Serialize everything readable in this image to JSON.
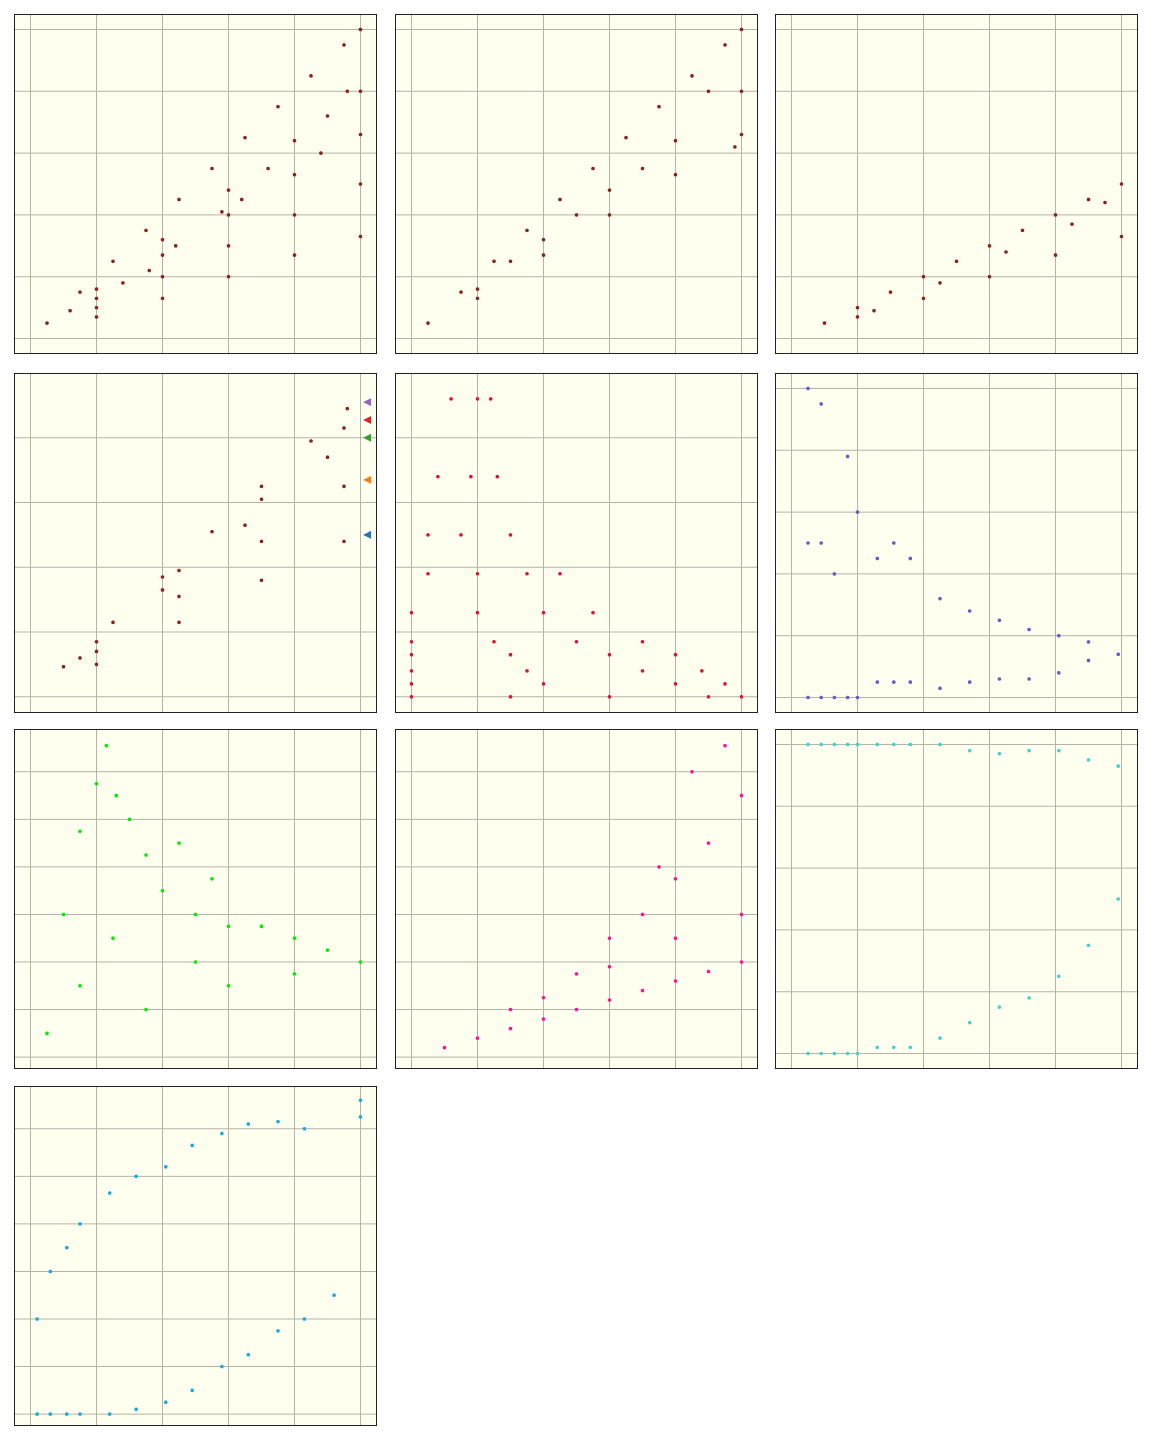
{
  "chart_data": [
    {
      "type": "scatter",
      "grid": true,
      "background": "#fffff0",
      "xlim": [
        -5,
        105
      ],
      "ylim": [
        -5,
        105
      ],
      "xticks": [
        0,
        20,
        40,
        60,
        80,
        100
      ],
      "yticks": [
        0,
        20,
        40,
        60,
        80,
        100
      ],
      "series": [
        {
          "color": "#8b2323",
          "x": [
            5,
            15,
            25,
            35,
            45,
            55,
            65,
            75,
            85,
            95,
            100,
            20,
            40,
            60,
            80,
            100,
            20,
            40,
            60,
            80,
            100,
            20,
            40,
            60,
            80,
            100,
            20,
            40,
            60,
            80,
            100,
            12,
            28,
            44,
            58,
            72,
            88,
            96,
            36,
            64,
            90
          ],
          "y": [
            5,
            15,
            25,
            35,
            45,
            55,
            65,
            75,
            85,
            95,
            100,
            16,
            32,
            48,
            64,
            80,
            13,
            27,
            40,
            53,
            66,
            10,
            20,
            30,
            40,
            50,
            7,
            13,
            20,
            27,
            33,
            9,
            18,
            30,
            41,
            55,
            60,
            80,
            22,
            45,
            72
          ]
        }
      ]
    },
    {
      "type": "scatter",
      "grid": true,
      "background": "#fffff0",
      "xlim": [
        -5,
        105
      ],
      "ylim": [
        -5,
        105
      ],
      "xticks": [
        0,
        20,
        40,
        60,
        80,
        100
      ],
      "yticks": [
        0,
        20,
        40,
        60,
        80,
        100
      ],
      "series": [
        {
          "color": "#8b2323",
          "x": [
            5,
            15,
            25,
            35,
            45,
            55,
            65,
            75,
            85,
            95,
            100,
            20,
            40,
            60,
            80,
            100,
            20,
            40,
            60,
            80,
            100,
            30,
            50,
            70,
            90,
            98
          ],
          "y": [
            5,
            15,
            25,
            35,
            45,
            55,
            65,
            75,
            85,
            95,
            100,
            16,
            32,
            48,
            64,
            80,
            13,
            27,
            40,
            53,
            66,
            25,
            40,
            55,
            80,
            62
          ]
        }
      ]
    },
    {
      "type": "scatter",
      "grid": true,
      "background": "#fffff0",
      "xlim": [
        -5,
        105
      ],
      "ylim": [
        -5,
        105
      ],
      "xticks": [
        0,
        20,
        40,
        60,
        80,
        100
      ],
      "yticks": [
        0,
        20,
        40,
        60,
        80,
        100
      ],
      "series": [
        {
          "color": "#8b2323",
          "x": [
            10,
            20,
            30,
            40,
            50,
            60,
            70,
            80,
            90,
            100,
            20,
            40,
            60,
            80,
            100,
            25,
            45,
            65,
            85,
            95
          ],
          "y": [
            5,
            10,
            15,
            20,
            25,
            30,
            35,
            40,
            45,
            50,
            7,
            13,
            20,
            27,
            33,
            9,
            18,
            28,
            37,
            44
          ]
        }
      ]
    },
    {
      "type": "scatter",
      "grid": true,
      "background": "#fffff0",
      "xlim": [
        -5,
        105
      ],
      "ylim": [
        -5,
        100
      ],
      "xticks": [
        0,
        20,
        40,
        60,
        80,
        100
      ],
      "yticks": [
        0,
        20,
        40,
        60,
        80
      ],
      "series": [
        {
          "color": "#8b2323",
          "x": [
            10,
            25,
            40,
            55,
            70,
            85,
            96,
            20,
            45,
            70,
            95,
            15,
            40,
            65,
            90,
            20,
            45,
            70,
            95,
            20,
            45,
            70,
            95
          ],
          "y": [
            9.3,
            23,
            37,
            51,
            65,
            79,
            89,
            17,
            39,
            61,
            83,
            12,
            33,
            53,
            74,
            14,
            31,
            48,
            65,
            10,
            23,
            36,
            48
          ]
        },
        {
          "marker": "triangle",
          "colors": [
            "#9467bd",
            "#d62728",
            "#2ca02c",
            "#ff7f0e",
            "#1f77b4"
          ],
          "x": [
            102,
            102,
            102,
            102,
            102
          ],
          "y": [
            91,
            85.5,
            80,
            67,
            50
          ]
        }
      ]
    },
    {
      "type": "scatter",
      "grid": true,
      "background": "#fffff0",
      "xlim": [
        -5,
        105
      ],
      "ylim": [
        -5,
        100
      ],
      "xticks": [
        0,
        20,
        40,
        60,
        80,
        100
      ],
      "yticks": [
        0,
        20,
        40,
        60,
        80
      ],
      "series": [
        {
          "color": "#dc143c",
          "x": [
            0,
            30,
            60,
            90,
            100,
            0,
            40,
            80,
            95,
            0,
            35,
            70,
            88,
            0,
            30,
            60,
            80,
            0,
            25,
            50,
            70,
            0,
            20,
            40,
            55,
            5,
            20,
            35,
            45,
            5,
            15,
            30,
            8,
            18,
            26,
            12,
            20,
            24
          ],
          "y": [
            0,
            0,
            0,
            0,
            0,
            4,
            4,
            4,
            4,
            8,
            8,
            8,
            8,
            13,
            13,
            13,
            13,
            17,
            17,
            17,
            17,
            26,
            26,
            26,
            26,
            38,
            38,
            38,
            38,
            50,
            50,
            50,
            68,
            68,
            68,
            92,
            92,
            92
          ]
        }
      ]
    },
    {
      "type": "scatter",
      "grid": true,
      "background": "#fffff0",
      "xlim": [
        -5,
        105
      ],
      "ylim": [
        -5,
        105
      ],
      "xticks": [
        0,
        20,
        40,
        60,
        80,
        100
      ],
      "yticks": [
        0,
        20,
        40,
        60,
        80,
        100
      ],
      "series": [
        {
          "color": "#6a5acd",
          "x": [
            5,
            5,
            5,
            9,
            9,
            9,
            13,
            13,
            17,
            17,
            20,
            20,
            26,
            26,
            31,
            31,
            36,
            36,
            45,
            45,
            54,
            54,
            63,
            63,
            72,
            72,
            81,
            81,
            90,
            90,
            99
          ],
          "y": [
            0,
            50,
            100,
            0,
            50,
            95,
            0,
            40,
            0,
            78,
            0,
            60,
            5,
            45,
            5,
            50,
            5,
            45,
            3,
            32,
            5,
            28,
            6,
            25,
            6,
            22,
            8,
            20,
            12,
            18,
            14
          ]
        }
      ]
    },
    {
      "type": "scatter",
      "grid": true,
      "background": "#fffff0",
      "xlim": [
        -5,
        105
      ],
      "ylim": [
        -5,
        138
      ],
      "xticks": [
        0,
        20,
        40,
        60,
        80,
        100
      ],
      "yticks": [
        0,
        20,
        40,
        60,
        80,
        100,
        120
      ],
      "series": [
        {
          "color": "#00ee00",
          "x": [
            23,
            20,
            26,
            15,
            30,
            10,
            35,
            40,
            50,
            60,
            70,
            80,
            90,
            100,
            45,
            55,
            70,
            50,
            60,
            80,
            25,
            15,
            35,
            5
          ],
          "y": [
            131,
            115,
            110,
            95,
            100,
            60,
            85,
            70,
            60,
            55,
            55,
            50,
            45,
            40,
            90,
            75,
            55,
            40,
            30,
            35,
            50,
            30,
            20,
            10
          ]
        }
      ]
    },
    {
      "type": "scatter",
      "grid": true,
      "background": "#fffff0",
      "xlim": [
        -5,
        105
      ],
      "ylim": [
        -5,
        138
      ],
      "xticks": [
        0,
        20,
        40,
        60,
        80,
        100
      ],
      "yticks": [
        0,
        20,
        40,
        60,
        80,
        100,
        120
      ],
      "series": [
        {
          "color": "#ff1493",
          "x": [
            10,
            20,
            30,
            40,
            50,
            60,
            70,
            80,
            90,
            100,
            50,
            60,
            70,
            80,
            90,
            95,
            100,
            40,
            60,
            80,
            100,
            30,
            85,
            75
          ],
          "y": [
            4,
            8,
            12,
            16,
            20,
            24,
            28,
            32,
            36,
            40,
            35,
            50,
            60,
            75,
            90,
            131,
            110,
            25,
            38,
            50,
            60,
            20,
            120,
            80
          ]
        }
      ]
    },
    {
      "type": "scatter",
      "grid": true,
      "background": "#fffff0",
      "xlim": [
        -5,
        105
      ],
      "ylim": [
        -5,
        105
      ],
      "xticks": [
        0,
        20,
        40,
        60,
        80,
        100
      ],
      "yticks": [
        0,
        20,
        40,
        60,
        80,
        100
      ],
      "series": [
        {
          "color": "#48d1cc",
          "x": [
            5,
            5,
            9,
            9,
            13,
            13,
            17,
            17,
            20,
            20,
            26,
            26,
            31,
            31,
            36,
            36,
            45,
            45,
            54,
            54,
            63,
            63,
            72,
            72,
            81,
            81,
            90,
            90,
            99,
            99
          ],
          "y": [
            0,
            100,
            0,
            100,
            0,
            100,
            0,
            100,
            0,
            100,
            2,
            100,
            2,
            100,
            2,
            100,
            5,
            100,
            10,
            98,
            15,
            97,
            18,
            98,
            25,
            98,
            35,
            95,
            50,
            93
          ]
        }
      ]
    },
    {
      "type": "scatter",
      "grid": true,
      "background": "#fffff0",
      "xlim": [
        -5,
        105
      ],
      "ylim": [
        -5,
        138
      ],
      "xticks": [
        0,
        20,
        40,
        60,
        80,
        100
      ],
      "yticks": [
        0,
        20,
        40,
        60,
        80,
        100,
        120
      ],
      "series": [
        {
          "color": "#1ca9e0",
          "x": [
            2,
            2,
            6,
            6,
            11,
            11,
            15,
            15,
            24,
            24,
            32,
            32,
            41,
            41,
            49,
            49,
            58,
            58,
            66,
            66,
            75,
            75,
            83,
            83,
            92,
            100,
            100
          ],
          "y": [
            0,
            40,
            0,
            60,
            0,
            70,
            0,
            80,
            0,
            93,
            2,
            100,
            5,
            104,
            10,
            113,
            20,
            118,
            25,
            122,
            35,
            123,
            40,
            120,
            50,
            125,
            132
          ]
        }
      ]
    }
  ]
}
